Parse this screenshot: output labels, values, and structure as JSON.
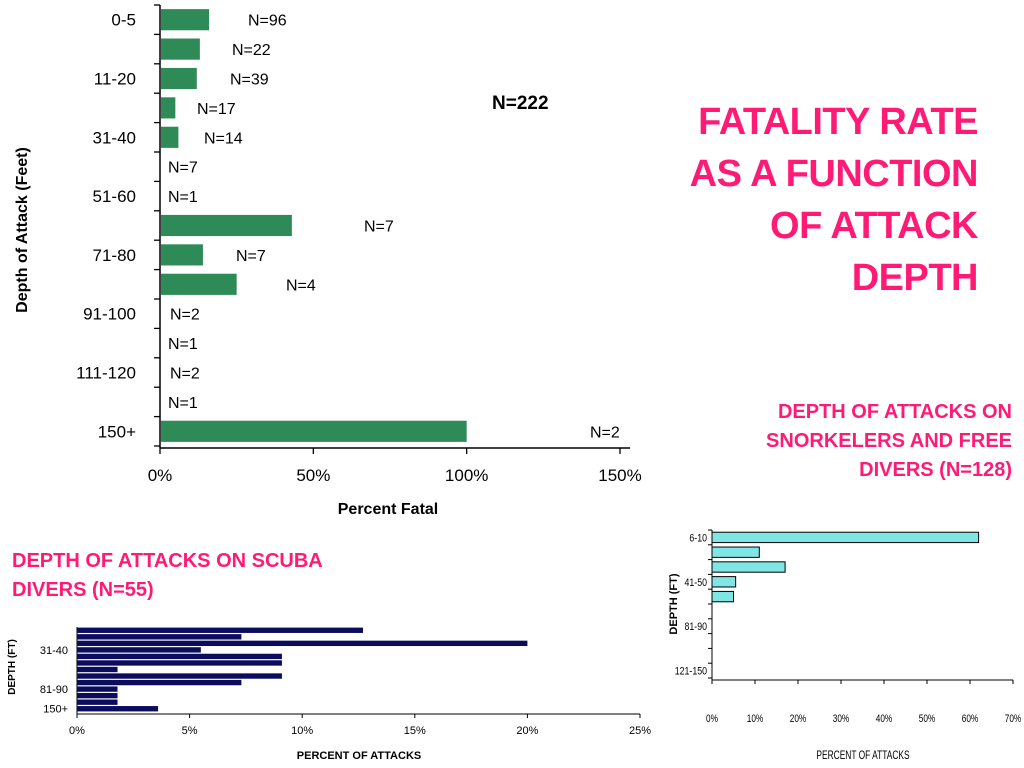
{
  "slide": {
    "title_lines": [
      "FATALITY RATE",
      "AS A FUNCTION",
      "OF ATTACK",
      "DEPTH"
    ],
    "title_color": "#ff1a75"
  },
  "snorkel": {
    "title_lines": [
      "DEPTH OF ATTACKS ON",
      "SNORKELERS AND FREE",
      "DIVERS (N=128)"
    ]
  },
  "scuba": {
    "title_lines": [
      "DEPTH OF ATTACKS ON SCUBA",
      "DIVERS (N=55)"
    ]
  },
  "chart_data": [
    {
      "type": "bar",
      "orientation": "horizontal",
      "xlabel": "Percent Fatal",
      "ylabel": "Depth of Attack (Feet)",
      "annotation": "N=222",
      "xlim": [
        0,
        150
      ],
      "xticks": [
        "0%",
        "50%",
        "100%",
        "150%"
      ],
      "category_labels": [
        "0-5",
        "",
        "11-20",
        "",
        "31-40",
        "",
        "51-60",
        "",
        "71-80",
        "",
        "91-100",
        "",
        "111-120",
        "",
        "150+"
      ],
      "values": [
        16,
        13,
        12,
        5,
        6,
        0,
        0,
        43,
        14,
        25,
        0,
        0,
        0,
        0,
        100
      ],
      "n_labels": [
        "N=96",
        "N=22",
        "N=39",
        "N=17",
        "N=14",
        "N=7",
        "N=1",
        "N=7",
        "N=7",
        "N=4",
        "N=2",
        "N=1",
        "N=2",
        "N=1",
        "N=2"
      ],
      "bar_color": "#2e8b57"
    },
    {
      "type": "bar",
      "orientation": "horizontal",
      "xlabel": "PERCENT OF ATTACKS",
      "ylabel": "DEPTH (FT)",
      "xlim": [
        0,
        70
      ],
      "xticks": [
        "0%",
        "10%",
        "20%",
        "30%",
        "40%",
        "50%",
        "60%",
        "70%"
      ],
      "category_labels": [
        "6-10",
        "",
        "",
        "41-50",
        "",
        "",
        "81-90",
        "",
        "",
        "121-150"
      ],
      "values": [
        62,
        11,
        17,
        5.5,
        5,
        0,
        0,
        0,
        0,
        0
      ],
      "bar_color": "#7fe5e5"
    },
    {
      "type": "bar",
      "orientation": "horizontal",
      "xlabel": "PERCENT OF ATTACKS",
      "ylabel": "DEPTH (FT)",
      "xlim": [
        0,
        25
      ],
      "xticks": [
        "0%",
        "5%",
        "10%",
        "15%",
        "20%",
        "25%"
      ],
      "category_labels": [
        "",
        "31-40",
        "",
        "81-90",
        "",
        "150+"
      ],
      "values": [
        12.7,
        7.3,
        20,
        5.5,
        9.1,
        9.1,
        1.8,
        9.1,
        7.3,
        1.8,
        1.8,
        1.8,
        3.6
      ],
      "bar_color": "#0c0c5c"
    }
  ]
}
